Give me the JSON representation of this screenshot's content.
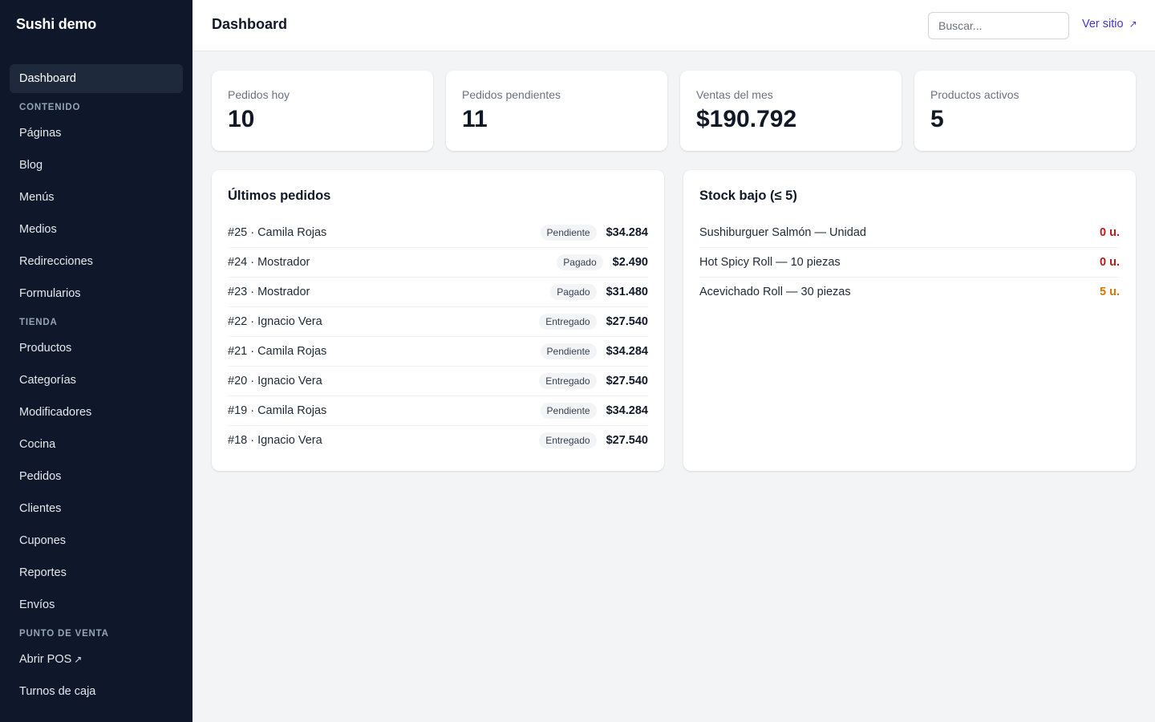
{
  "app": {
    "title": "Sushi demo"
  },
  "sidebar": {
    "items": [
      {
        "type": "item",
        "label": "Dashboard",
        "active": true,
        "name": "sidebar-item-dashboard"
      },
      {
        "type": "section",
        "label": "CONTENIDO",
        "name": "section-contenido"
      },
      {
        "type": "item",
        "label": "Páginas",
        "name": "sidebar-item-paginas"
      },
      {
        "type": "item",
        "label": "Blog",
        "name": "sidebar-item-blog"
      },
      {
        "type": "item",
        "label": "Menús",
        "name": "sidebar-item-menus"
      },
      {
        "type": "item",
        "label": "Medios",
        "name": "sidebar-item-medios"
      },
      {
        "type": "item",
        "label": "Redirecciones",
        "name": "sidebar-item-redirecciones"
      },
      {
        "type": "item",
        "label": "Formularios",
        "name": "sidebar-item-formularios"
      },
      {
        "type": "section",
        "label": "TIENDA",
        "name": "section-tienda"
      },
      {
        "type": "item",
        "label": "Productos",
        "name": "sidebar-item-productos"
      },
      {
        "type": "item",
        "label": "Categorías",
        "name": "sidebar-item-categorias"
      },
      {
        "type": "item",
        "label": "Modificadores",
        "name": "sidebar-item-modificadores"
      },
      {
        "type": "item",
        "label": "Cocina",
        "name": "sidebar-item-cocina"
      },
      {
        "type": "item",
        "label": "Pedidos",
        "name": "sidebar-item-pedidos"
      },
      {
        "type": "item",
        "label": "Clientes",
        "name": "sidebar-item-clientes"
      },
      {
        "type": "item",
        "label": "Cupones",
        "name": "sidebar-item-cupones"
      },
      {
        "type": "item",
        "label": "Reportes",
        "name": "sidebar-item-reportes"
      },
      {
        "type": "item",
        "label": "Envíos",
        "name": "sidebar-item-envios"
      },
      {
        "type": "section",
        "label": "PUNTO DE VENTA",
        "name": "section-punto-de-venta"
      },
      {
        "type": "item",
        "label": "Abrir POS",
        "external": true,
        "name": "sidebar-item-abrir-pos"
      },
      {
        "type": "item",
        "label": "Turnos de caja",
        "name": "sidebar-item-turnos-de-caja"
      }
    ],
    "external_icon": "↗"
  },
  "header": {
    "title": "Dashboard",
    "search_placeholder": "Buscar...",
    "view_site_label": "Ver sitio",
    "view_site_icon": "↗"
  },
  "stats": [
    {
      "label": "Pedidos hoy",
      "value": "10"
    },
    {
      "label": "Pedidos pendientes",
      "value": "11"
    },
    {
      "label": "Ventas del mes",
      "value": "$190.792"
    },
    {
      "label": "Productos activos",
      "value": "5"
    }
  ],
  "orders": {
    "title": "Últimos pedidos",
    "rows": [
      {
        "text": "#25 · Camila Rojas",
        "status": "Pendiente",
        "amount": "$34.284"
      },
      {
        "text": "#24 · Mostrador",
        "status": "Pagado",
        "amount": "$2.490"
      },
      {
        "text": "#23 · Mostrador",
        "status": "Pagado",
        "amount": "$31.480"
      },
      {
        "text": "#22 · Ignacio Vera",
        "status": "Entregado",
        "amount": "$27.540"
      },
      {
        "text": "#21 · Camila Rojas",
        "status": "Pendiente",
        "amount": "$34.284"
      },
      {
        "text": "#20 · Ignacio Vera",
        "status": "Entregado",
        "amount": "$27.540"
      },
      {
        "text": "#19 · Camila Rojas",
        "status": "Pendiente",
        "amount": "$34.284"
      },
      {
        "text": "#18 · Ignacio Vera",
        "status": "Entregado",
        "amount": "$27.540"
      }
    ]
  },
  "stock": {
    "title": "Stock bajo (≤ 5)",
    "rows": [
      {
        "text": "Sushiburguer Salmón — Unidad",
        "qty": "0 u.",
        "color": "#b91c1c"
      },
      {
        "text": "Hot Spicy Roll — 10 piezas",
        "qty": "0 u.",
        "color": "#b91c1c"
      },
      {
        "text": "Acevichado Roll — 30 piezas",
        "qty": "5 u.",
        "color": "#d97706"
      }
    ]
  }
}
